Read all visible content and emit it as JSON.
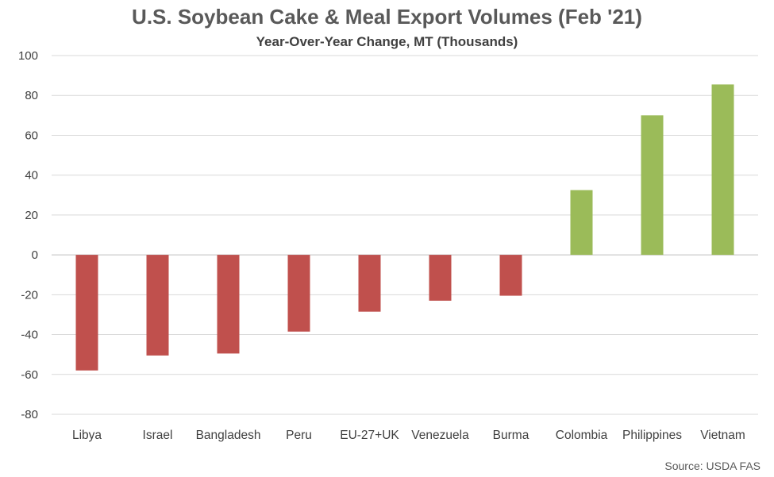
{
  "chart_data": {
    "type": "bar",
    "title": "U.S. Soybean Cake & Meal Export Volumes (Feb '21)",
    "subtitle": "Year-Over-Year Change, MT (Thousands)",
    "source": "Source: USDA FAS",
    "categories": [
      "Libya",
      "Israel",
      "Bangladesh",
      "Peru",
      "EU-27+UK",
      "Venezuela",
      "Burma",
      "Colombia",
      "Philippines",
      "Vietnam"
    ],
    "values": [
      -58,
      -50.5,
      -49.5,
      -38.5,
      -28.5,
      -23,
      -20.5,
      32.5,
      70,
      85.5
    ],
    "ylim": [
      -80,
      100
    ],
    "yticks": [
      100,
      80,
      60,
      40,
      20,
      0,
      -20,
      -40,
      -60,
      -80
    ],
    "grid": true,
    "colors": {
      "positive": "#9BBB59",
      "negative": "#C0504D",
      "grid": "#D9D9D9",
      "axis": "#BFBFBF"
    }
  }
}
